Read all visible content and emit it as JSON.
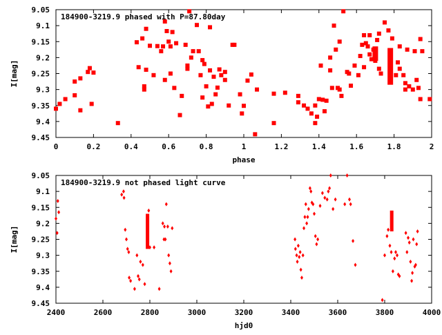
{
  "chart_data": [
    {
      "type": "scatter",
      "title": "184900-3219.9 phased with P=87.80day",
      "xlabel": "phase",
      "ylabel": "I[mag]",
      "xlim": [
        0,
        2
      ],
      "ylim": [
        9.05,
        9.45
      ],
      "y_inverted": true,
      "x_ticks": [
        "0",
        "0.2",
        "0.4",
        "0.6",
        "0.8",
        "1",
        "1.2",
        "1.4",
        "1.6",
        "1.8",
        "2"
      ],
      "x_tick_values": [
        0,
        0.2,
        0.4,
        0.6,
        0.8,
        1.0,
        1.2,
        1.4,
        1.6,
        1.8,
        2.0
      ],
      "y_ticks": [
        "9.05",
        "9.1",
        "9.15",
        "9.2",
        "9.25",
        "9.3",
        "9.35",
        "9.4",
        "9.45"
      ],
      "y_tick_values": [
        9.05,
        9.1,
        9.15,
        9.2,
        9.25,
        9.3,
        9.35,
        9.4,
        9.45
      ],
      "marker_color": "#ff0000",
      "grid": false,
      "legend": "top-left",
      "series": [
        {
          "points": [
            [
              0.0,
              9.36
            ],
            [
              0.02,
              9.345
            ],
            [
              0.05,
              9.33
            ],
            [
              0.1,
              9.318
            ],
            [
              0.1,
              9.275
            ],
            [
              0.13,
              9.365
            ],
            [
              0.13,
              9.265
            ],
            [
              0.17,
              9.245
            ],
            [
              0.18,
              9.233
            ],
            [
              0.19,
              9.345
            ],
            [
              0.2,
              9.247
            ],
            [
              0.33,
              9.405
            ],
            [
              0.43,
              9.152
            ],
            [
              0.44,
              9.23
            ],
            [
              0.46,
              9.14
            ],
            [
              0.47,
              9.29
            ],
            [
              0.47,
              9.3
            ],
            [
              0.48,
              9.11
            ],
            [
              0.48,
              9.238
            ],
            [
              0.5,
              9.163
            ],
            [
              0.52,
              9.255
            ],
            [
              0.54,
              9.164
            ],
            [
              0.56,
              9.18
            ],
            [
              0.57,
              9.165
            ],
            [
              0.58,
              9.27
            ],
            [
              0.58,
              9.087
            ],
            [
              0.59,
              9.117
            ],
            [
              0.6,
              9.15
            ],
            [
              0.61,
              9.165
            ],
            [
              0.61,
              9.25
            ],
            [
              0.62,
              9.12
            ],
            [
              0.63,
              9.295
            ],
            [
              0.64,
              9.155
            ],
            [
              0.66,
              9.38
            ],
            [
              0.67,
              9.32
            ],
            [
              0.69,
              9.16
            ],
            [
              0.7,
              9.235
            ],
            [
              0.7,
              9.225
            ],
            [
              0.71,
              9.055
            ],
            [
              0.72,
              9.2
            ],
            [
              0.73,
              9.18
            ],
            [
              0.75,
              9.098
            ],
            [
              0.76,
              9.18
            ],
            [
              0.77,
              9.255
            ],
            [
              0.78,
              9.325
            ],
            [
              0.78,
              9.208
            ],
            [
              0.79,
              9.22
            ],
            [
              0.8,
              9.29
            ],
            [
              0.81,
              9.353
            ],
            [
              0.82,
              9.105
            ],
            [
              0.82,
              9.24
            ],
            [
              0.83,
              9.345
            ],
            [
              0.84,
              9.26
            ],
            [
              0.85,
              9.315
            ],
            [
              0.86,
              9.294
            ],
            [
              0.87,
              9.237
            ],
            [
              0.88,
              9.255
            ],
            [
              0.9,
              9.245
            ],
            [
              0.9,
              9.27
            ],
            [
              0.92,
              9.35
            ],
            [
              0.94,
              9.16
            ],
            [
              0.95,
              9.16
            ],
            [
              0.98,
              9.315
            ],
            [
              0.99,
              9.375
            ],
            [
              1.0,
              9.351
            ],
            [
              1.02,
              9.272
            ],
            [
              1.04,
              9.253
            ],
            [
              1.06,
              9.44
            ],
            [
              1.07,
              9.3
            ],
            [
              1.16,
              9.405
            ],
            [
              1.16,
              9.313
            ],
            [
              1.22,
              9.31
            ],
            [
              1.29,
              9.32
            ],
            [
              1.29,
              9.34
            ],
            [
              1.32,
              9.35
            ],
            [
              1.34,
              9.36
            ],
            [
              1.36,
              9.375
            ],
            [
              1.38,
              9.405
            ],
            [
              1.38,
              9.35
            ],
            [
              1.39,
              9.385
            ],
            [
              1.4,
              9.33
            ],
            [
              1.41,
              9.225
            ],
            [
              1.42,
              9.332
            ],
            [
              1.43,
              9.368
            ],
            [
              1.44,
              9.335
            ],
            [
              1.46,
              9.24
            ],
            [
              1.46,
              9.2
            ],
            [
              1.47,
              9.295
            ],
            [
              1.48,
              9.1
            ],
            [
              1.49,
              9.175
            ],
            [
              1.5,
              9.295
            ],
            [
              1.51,
              9.15
            ],
            [
              1.51,
              9.3
            ],
            [
              1.52,
              9.32
            ],
            [
              1.53,
              9.055
            ],
            [
              1.55,
              9.245
            ],
            [
              1.56,
              9.25
            ],
            [
              1.57,
              9.288
            ],
            [
              1.59,
              9.225
            ],
            [
              1.61,
              9.255
            ],
            [
              1.62,
              9.195
            ],
            [
              1.63,
              9.16
            ],
            [
              1.64,
              9.23
            ],
            [
              1.64,
              9.13
            ],
            [
              1.65,
              9.155
            ],
            [
              1.66,
              9.165
            ],
            [
              1.67,
              9.13
            ],
            [
              1.67,
              9.19
            ],
            [
              1.68,
              9.205
            ],
            [
              1.69,
              9.175
            ],
            [
              1.7,
              9.21
            ],
            [
              1.71,
              9.145
            ],
            [
              1.72,
              9.125
            ],
            [
              1.72,
              9.235
            ],
            [
              1.73,
              9.25
            ],
            [
              1.75,
              9.09
            ],
            [
              1.77,
              9.115
            ],
            [
              1.79,
              9.14
            ],
            [
              1.81,
              9.255
            ],
            [
              1.82,
              9.215
            ],
            [
              1.83,
              9.165
            ],
            [
              1.83,
              9.235
            ],
            [
              1.85,
              9.255
            ],
            [
              1.86,
              9.28
            ],
            [
              1.86,
              9.3
            ],
            [
              1.87,
              9.175
            ],
            [
              1.88,
              9.29
            ],
            [
              1.9,
              9.3
            ],
            [
              1.91,
              9.18
            ],
            [
              1.92,
              9.27
            ],
            [
              1.93,
              9.295
            ],
            [
              1.94,
              9.142
            ],
            [
              1.94,
              9.33
            ],
            [
              1.95,
              9.18
            ],
            [
              1.99,
              9.33
            ]
          ],
          "vertical_clusters": [
            {
              "x": 1.7,
              "y_from": 9.165,
              "y_to": 9.21
            },
            {
              "x": 1.78,
              "y_from": 9.17,
              "y_to": 9.285
            }
          ]
        }
      ]
    },
    {
      "type": "scatter",
      "title": "184900-3219.9 not phased light curve",
      "xlabel": "hjd0",
      "ylabel": "I[mag]",
      "xlim": [
        2400,
        4000
      ],
      "ylim": [
        9.05,
        9.45
      ],
      "y_inverted": true,
      "x_ticks": [
        "2400",
        "2600",
        "2800",
        "3000",
        "3200",
        "3400",
        "3600",
        "3800",
        "4000"
      ],
      "x_tick_values": [
        2400,
        2600,
        2800,
        3000,
        3200,
        3400,
        3600,
        3800,
        4000
      ],
      "y_ticks": [
        "9.05",
        "9.1",
        "9.15",
        "9.2",
        "9.25",
        "9.3",
        "9.35",
        "9.4",
        "9.45"
      ],
      "y_tick_values": [
        9.05,
        9.1,
        9.15,
        9.2,
        9.25,
        9.3,
        9.35,
        9.4,
        9.45
      ],
      "marker_color": "#ff0000",
      "grid": false,
      "legend": "top-left",
      "series": [
        {
          "points": [
            [
              2400,
              9.185
            ],
            [
              2405,
              9.23
            ],
            [
              2408,
              9.13
            ],
            [
              2412,
              9.165
            ],
            [
              2680,
              9.11
            ],
            [
              2688,
              9.1
            ],
            [
              2690,
              9.12
            ],
            [
              2695,
              9.22
            ],
            [
              2700,
              9.25
            ],
            [
              2705,
              9.28
            ],
            [
              2710,
              9.29
            ],
            [
              2712,
              9.37
            ],
            [
              2718,
              9.38
            ],
            [
              2735,
              9.405
            ],
            [
              2745,
              9.3
            ],
            [
              2750,
              9.365
            ],
            [
              2755,
              9.375
            ],
            [
              2760,
              9.32
            ],
            [
              2770,
              9.33
            ],
            [
              2778,
              9.39
            ],
            [
              2795,
              9.16
            ],
            [
              2800,
              9.275
            ],
            [
              2818,
              9.275
            ],
            [
              2840,
              9.405
            ],
            [
              2855,
              9.2
            ],
            [
              2860,
              9.25
            ],
            [
              2862,
              9.21
            ],
            [
              2866,
              9.25
            ],
            [
              2870,
              9.14
            ],
            [
              2876,
              9.21
            ],
            [
              2880,
              9.3
            ],
            [
              2885,
              9.325
            ],
            [
              2890,
              9.35
            ],
            [
              2895,
              9.215
            ],
            [
              3418,
              9.25
            ],
            [
              3420,
              9.28
            ],
            [
              3425,
              9.3
            ],
            [
              3428,
              9.32
            ],
            [
              3432,
              9.27
            ],
            [
              3436,
              9.305
            ],
            [
              3440,
              9.29
            ],
            [
              3443,
              9.345
            ],
            [
              3447,
              9.37
            ],
            [
              3452,
              9.3
            ],
            [
              3456,
              9.215
            ],
            [
              3460,
              9.18
            ],
            [
              3464,
              9.14
            ],
            [
              3468,
              9.2
            ],
            [
              3472,
              9.18
            ],
            [
              3476,
              9.155
            ],
            [
              3482,
              9.09
            ],
            [
              3486,
              9.1
            ],
            [
              3490,
              9.135
            ],
            [
              3495,
              9.14
            ],
            [
              3500,
              9.17
            ],
            [
              3505,
              9.24
            ],
            [
              3510,
              9.265
            ],
            [
              3515,
              9.25
            ],
            [
              3525,
              9.145
            ],
            [
              3535,
              9.105
            ],
            [
              3545,
              9.12
            ],
            [
              3555,
              9.125
            ],
            [
              3560,
              9.1
            ],
            [
              3565,
              9.09
            ],
            [
              3570,
              9.05
            ],
            [
              3580,
              9.155
            ],
            [
              3590,
              9.125
            ],
            [
              3630,
              9.14
            ],
            [
              3640,
              9.05
            ],
            [
              3650,
              9.125
            ],
            [
              3655,
              9.14
            ],
            [
              3665,
              9.255
            ],
            [
              3675,
              9.33
            ],
            [
              3790,
              9.44
            ],
            [
              3800,
              9.3
            ],
            [
              3810,
              9.24
            ],
            [
              3815,
              9.22
            ],
            [
              3822,
              9.27
            ],
            [
              3828,
              9.29
            ],
            [
              3835,
              9.35
            ],
            [
              3842,
              9.31
            ],
            [
              3847,
              9.29
            ],
            [
              3853,
              9.3
            ],
            [
              3858,
              9.36
            ],
            [
              3863,
              9.365
            ],
            [
              3890,
              9.23
            ],
            [
              3895,
              9.29
            ],
            [
              3900,
              9.245
            ],
            [
              3905,
              9.26
            ],
            [
              3910,
              9.32
            ],
            [
              3915,
              9.38
            ],
            [
              3918,
              9.355
            ],
            [
              3922,
              9.25
            ],
            [
              3928,
              9.335
            ],
            [
              3932,
              9.33
            ],
            [
              3936,
              9.265
            ],
            [
              3940,
              9.225
            ]
          ],
          "vertical_clusters": [
            {
              "x": 2790,
              "y_from": 9.17,
              "y_to": 9.28
            },
            {
              "x": 3830,
              "y_from": 9.16,
              "y_to": 9.225
            }
          ]
        }
      ]
    }
  ]
}
